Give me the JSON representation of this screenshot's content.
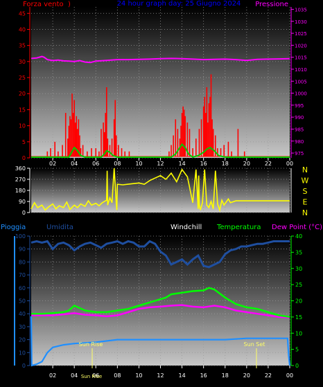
{
  "header": {
    "left": "Forza vento",
    "paren": ")",
    "center": "24 hour graph day: 25 Giugno 2024",
    "right": "Pressione"
  },
  "colors": {
    "wind_axis": "#ff0000",
    "wind_bar": "#ff0000",
    "gust": "#00cc00",
    "pressure": "#ff00ff",
    "title": "#0000ff",
    "direction": "#ffff00",
    "rain": "#1f8fff",
    "humidity": "#1f4fa0",
    "temperature": "#00ff00",
    "dewpoint": "#ff00ff",
    "windchill": "#ffffff",
    "sun": "#ffff66"
  },
  "x_ticks": [
    "02",
    "04",
    "06",
    "08",
    "10",
    "12",
    "14",
    "16",
    "18",
    "20",
    "22",
    "00"
  ],
  "compass": [
    "N",
    "W",
    "S",
    "E",
    "N"
  ],
  "bottom_legend": {
    "rain": "Pioggia",
    "humidity": "Umidita",
    "windchill": "Windchill",
    "temperature": "Temperatura",
    "dewpoint": "Dew Point (°C)"
  },
  "sun": {
    "rise_label": "Sun Rise",
    "rise_tick": "Sun Rise",
    "set_label": "Sun Set"
  },
  "chart_data": [
    {
      "type": "bar",
      "title": "Forza vento / Pressione",
      "x_range": [
        0,
        24
      ],
      "y_left_ticks": [
        0,
        5,
        10,
        15,
        20,
        25,
        30,
        35,
        40,
        45
      ],
      "y_left_range": [
        0,
        47
      ],
      "y_right_ticks": [
        975,
        980,
        985,
        990,
        995,
        1000,
        1005,
        1010,
        1015,
        1020,
        1025,
        1030,
        1035
      ],
      "y_right_range": [
        973,
        1036
      ],
      "series": [
        {
          "name": "Pressione",
          "axis": "right",
          "x": [
            0,
            0.5,
            1,
            1.2,
            1.5,
            2,
            2.5,
            3,
            3.5,
            4,
            4.5,
            5,
            5.5,
            6,
            7,
            8,
            9,
            10,
            11,
            12,
            13,
            14,
            15,
            16,
            17,
            18,
            19,
            20,
            21,
            22,
            23,
            24
          ],
          "values": [
            1014.5,
            1014.7,
            1015.3,
            1015.0,
            1014.0,
            1013.6,
            1013.8,
            1013.5,
            1013.4,
            1013.2,
            1013.6,
            1013.0,
            1012.8,
            1013.4,
            1013.7,
            1014.0,
            1014.0,
            1014.1,
            1014.2,
            1014.4,
            1014.5,
            1014.4,
            1014.2,
            1014.0,
            1014.1,
            1014.2,
            1014.0,
            1013.7,
            1014.1,
            1014.2,
            1014.3,
            1014.4
          ]
        },
        {
          "name": "Wind speed",
          "axis": "left",
          "x": [
            1.5,
            1.8,
            2.2,
            2.5,
            2.9,
            3.2,
            3.4,
            3.5,
            3.6,
            3.7,
            3.8,
            3.9,
            4.0,
            4.1,
            4.2,
            4.3,
            4.4,
            4.5,
            4.6,
            4.8,
            5.2,
            5.6,
            6.0,
            6.3,
            6.5,
            6.7,
            6.8,
            6.9,
            7.0,
            7.1,
            7.3,
            7.5,
            7.7,
            7.8,
            7.9,
            8.1,
            8.4,
            8.7,
            9.1,
            12.8,
            13.0,
            13.2,
            13.4,
            13.6,
            13.8,
            13.9,
            14.0,
            14.1,
            14.2,
            14.3,
            14.5,
            14.7,
            15.0,
            15.3,
            15.6,
            15.8,
            16.0,
            16.1,
            16.2,
            16.3,
            16.4,
            16.5,
            16.6,
            16.7,
            16.8,
            16.9,
            17.1,
            17.3,
            17.6,
            17.9,
            18.3,
            18.6,
            19.2,
            19.8
          ],
          "values": [
            2,
            3,
            5,
            2,
            4,
            14,
            6,
            10,
            13,
            12,
            20,
            14,
            18,
            11,
            13,
            9,
            12,
            7,
            3,
            4,
            2,
            3,
            3,
            2,
            9,
            11,
            8,
            14,
            22,
            6,
            4,
            6,
            12,
            18,
            7,
            4,
            3,
            2,
            2,
            2,
            4,
            7,
            12,
            9,
            6,
            10,
            14,
            16,
            15,
            13,
            11,
            9,
            3,
            6,
            9,
            12,
            16,
            19,
            14,
            22,
            11,
            17,
            19,
            26,
            12,
            9,
            7,
            3,
            3,
            4,
            5,
            2,
            9,
            2
          ]
        },
        {
          "name": "Gust",
          "axis": "left",
          "x": [
            0,
            3.5,
            4.0,
            4.3,
            4.6,
            5.0,
            6.5,
            6.8,
            7.0,
            7.3,
            7.6,
            8.0,
            13.0,
            13.4,
            13.8,
            14.0,
            14.3,
            14.6,
            15.0,
            15.5,
            16.0,
            16.3,
            16.6,
            17.0,
            17.4,
            18.0,
            24
          ],
          "values": [
            0,
            0,
            3,
            2,
            0.5,
            0,
            0,
            1,
            2,
            1.5,
            0.5,
            0,
            0,
            1,
            3,
            4,
            3,
            1,
            0,
            0.5,
            1.5,
            2.5,
            3,
            2,
            0.5,
            0,
            0
          ]
        }
      ]
    },
    {
      "type": "line",
      "title": "Direzione vento",
      "x_range": [
        0,
        24
      ],
      "y_ticks": [
        0,
        90,
        180,
        270,
        360
      ],
      "y_range": [
        0,
        360
      ],
      "series": [
        {
          "name": "Direzione",
          "x": [
            0,
            0.3,
            0.6,
            1,
            1.3,
            1.6,
            2,
            2.3,
            2.6,
            3,
            3.3,
            3.6,
            4,
            4.3,
            4.6,
            5,
            5.3,
            5.6,
            6,
            6.3,
            6.6,
            7.0,
            7.05,
            7.1,
            7.3,
            7.5,
            7.7,
            7.9,
            7.95,
            8,
            8.5,
            9,
            9.5,
            10,
            10.5,
            11,
            11.5,
            12,
            12.5,
            13,
            13.5,
            14,
            14.5,
            15,
            15.3,
            15.5,
            15.55,
            15.6,
            15.7,
            15.9,
            16.1,
            16.3,
            16.5,
            16.7,
            16.9,
            17.1,
            17.3,
            17.5,
            17.7,
            17.9,
            18.1,
            18.3,
            18.5,
            19,
            20,
            21,
            22,
            23,
            24
          ],
          "values": [
            30,
            80,
            40,
            60,
            20,
            45,
            70,
            30,
            55,
            40,
            85,
            25,
            60,
            40,
            70,
            50,
            95,
            60,
            75,
            55,
            80,
            100,
            340,
            60,
            120,
            80,
            360,
            70,
            20,
            230,
            225,
            230,
            235,
            240,
            230,
            260,
            280,
            300,
            270,
            320,
            250,
            350,
            290,
            80,
            350,
            30,
            300,
            60,
            20,
            80,
            350,
            60,
            40,
            90,
            30,
            340,
            70,
            20,
            100,
            60,
            85,
            110,
            80,
            95,
            95,
            95,
            95,
            95,
            95
          ]
        }
      ]
    },
    {
      "type": "line",
      "title": "Pioggia / Umidita / Temperatura / Dew Point",
      "x_range": [
        0,
        24
      ],
      "y_left_ticks": [
        0,
        10,
        20,
        30,
        40,
        50,
        60,
        70,
        80,
        90,
        100
      ],
      "y_left_range": [
        0,
        100
      ],
      "y_right_ticks": [
        0,
        5,
        10,
        15,
        20,
        25,
        30,
        35,
        40
      ],
      "y_right_range": [
        0,
        40
      ],
      "series": [
        {
          "name": "Umidita",
          "axis": "left",
          "x": [
            0,
            0.5,
            1,
            1.5,
            2,
            2.5,
            3,
            3.5,
            4,
            4.5,
            5,
            5.5,
            6,
            6.5,
            7,
            7.5,
            8,
            8.5,
            9,
            9.5,
            10,
            10.5,
            11,
            11.5,
            12,
            12.5,
            13,
            13.5,
            14,
            14.5,
            15,
            15.5,
            16,
            16.5,
            17,
            17.5,
            18,
            18.5,
            19,
            19.5,
            20,
            20.5,
            21,
            21.5,
            22,
            22.5,
            23,
            23.5,
            24
          ],
          "values": [
            95,
            96,
            95,
            96,
            90,
            94,
            95,
            93,
            89,
            92,
            94,
            95,
            93,
            91,
            94,
            95,
            96,
            94,
            96,
            95,
            92,
            92,
            96,
            94,
            88,
            85,
            78,
            80,
            82,
            78,
            82,
            85,
            77,
            76,
            78,
            80,
            86,
            89,
            90,
            92,
            92,
            93,
            94,
            94,
            95,
            96,
            96,
            96,
            96
          ],
          "segments": [
            [
              0,
              90
            ],
            [
              22.8,
              90
            ]
          ]
        },
        {
          "name": "Temperatura",
          "axis": "right",
          "x": [
            0,
            1,
            2,
            3,
            3.5,
            4,
            5,
            6,
            7,
            8,
            9,
            10,
            11,
            12,
            12.5,
            13,
            14,
            15,
            16,
            16.5,
            17,
            18,
            19,
            20,
            21,
            22,
            23,
            24
          ],
          "values": [
            16,
            16,
            16.2,
            16.5,
            17,
            18.5,
            17,
            16.5,
            16.5,
            17,
            17.5,
            18.5,
            19.5,
            20.5,
            21,
            22,
            22.5,
            23,
            23.2,
            24,
            23.5,
            21,
            19,
            18,
            17.5,
            16.5,
            15.5,
            15
          ],
          "segments": []
        },
        {
          "name": "Dew Point",
          "axis": "right",
          "x": [
            0,
            1,
            2,
            3,
            4,
            5,
            6,
            7,
            8,
            9,
            10,
            11,
            12,
            13,
            14,
            15,
            16,
            17,
            18,
            19,
            20,
            21,
            22,
            23,
            24
          ],
          "values": [
            15.5,
            15.5,
            15.5,
            15.8,
            16.2,
            15.7,
            15.5,
            15.2,
            15.5,
            16.5,
            17.5,
            18,
            18.2,
            18.5,
            18.7,
            18.2,
            18,
            18.5,
            18,
            17,
            16.5,
            16,
            15.5,
            15,
            14.8
          ],
          "segments": []
        },
        {
          "name": "Pioggia",
          "axis": "left",
          "x": [
            0,
            0.05,
            0.5,
            1,
            1.5,
            2,
            3,
            4,
            6,
            8,
            10,
            12,
            14,
            16,
            18,
            20,
            22,
            23.8,
            23.9,
            24
          ],
          "values": [
            38,
            0,
            1,
            3,
            10,
            14,
            16,
            17,
            18,
            20,
            20,
            20,
            20,
            20,
            20,
            21,
            21,
            21,
            8,
            0
          ],
          "segments": []
        }
      ]
    }
  ]
}
